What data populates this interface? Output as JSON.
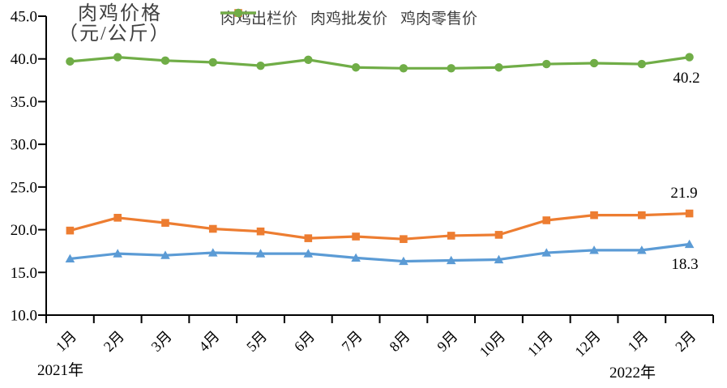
{
  "title": {
    "line1": "肉鸡价格",
    "line2": "（元/公斤）"
  },
  "chart_data": {
    "type": "line",
    "title": "肉鸡价格（元/公斤）",
    "categories": [
      "1月",
      "2月",
      "3月",
      "4月",
      "5月",
      "6月",
      "7月",
      "8月",
      "9月",
      "10月",
      "11月",
      "12月",
      "1月",
      "2月"
    ],
    "year_labels": [
      {
        "text": "2021年",
        "anchor_category_index": 0
      },
      {
        "text": "2022年",
        "anchor_category_index": 12
      }
    ],
    "ylim": [
      10,
      45
    ],
    "y_tick_step": 5,
    "y_ticks": [
      "45.0",
      "40.0",
      "35.0",
      "30.0",
      "25.0",
      "20.0",
      "15.0",
      "10.0"
    ],
    "grid": false,
    "legend_position": "top",
    "axis_color": "#000000",
    "label_color": "#000000",
    "title_color": "#404040",
    "series": [
      {
        "key": "farmgate-price",
        "name": "肉鸡出栏价",
        "color": "#5B9BD5",
        "marker": "triangle",
        "values": [
          16.6,
          17.2,
          17.0,
          17.3,
          17.2,
          17.2,
          16.7,
          16.3,
          16.4,
          16.5,
          17.3,
          17.6,
          17.6,
          18.3
        ],
        "end_label": "18.3"
      },
      {
        "key": "wholesale-price",
        "name": "肉鸡批发价",
        "color": "#ED7D31",
        "marker": "square",
        "values": [
          19.9,
          21.4,
          20.8,
          20.1,
          19.8,
          19.0,
          19.2,
          18.9,
          19.3,
          19.4,
          21.1,
          21.7,
          21.7,
          21.9
        ],
        "end_label": "21.9"
      },
      {
        "key": "retail-price",
        "name": "鸡肉零售价",
        "color": "#70AD47",
        "marker": "circle",
        "values": [
          39.7,
          40.2,
          39.8,
          39.6,
          39.2,
          39.9,
          39.0,
          38.9,
          38.9,
          39.0,
          39.4,
          39.5,
          39.4,
          40.2
        ],
        "end_label": "40.2"
      }
    ]
  }
}
